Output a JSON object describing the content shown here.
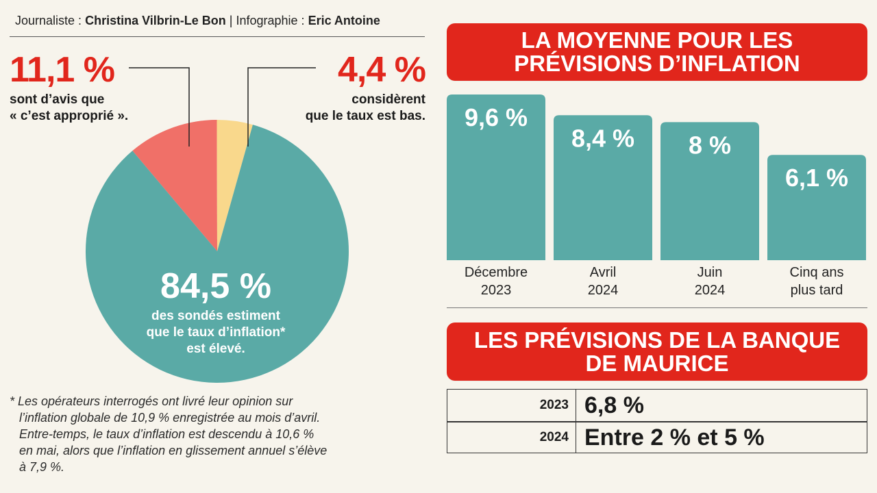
{
  "credits": {
    "journalist_label": "Journaliste :",
    "journalist_name": "Christina Vilbrin-Le Bon",
    "separator": "|",
    "infographic_label": "Infographie :",
    "infographic_name": "Eric Antoine"
  },
  "pie": {
    "approprie": {
      "value_label": "11,1 %",
      "line1": "sont d’avis que",
      "line2": "« c’est approprié »."
    },
    "bas": {
      "value_label": "4,4 %",
      "line1": "considèrent",
      "line2": "que le taux est bas."
    },
    "eleve": {
      "value_label": "84,5 %",
      "line1": "des sondés estiment",
      "line2": "que le taux d’inflation*",
      "line3": "est élevé."
    }
  },
  "footnote": [
    "* Les opérateurs interrogés ont livré leur opinion sur",
    "l’inflation globale de 10,9 % enregistrée au mois d’avril.",
    "Entre-temps, le taux d’inflation est descendu à 10,6 %",
    "en mai, alors que l’inflation en glissement annuel s’élève",
    "à 7,9 %."
  ],
  "banner_moyenne": {
    "line1": "LA MOYENNE POUR LES",
    "line2": "PRÉVISIONS D’INFLATION"
  },
  "bars": {
    "labels": [
      "9,6 %",
      "8,4 %",
      "8 %",
      "6,1 %"
    ],
    "categories": [
      {
        "line1": "Décembre",
        "line2": "2023"
      },
      {
        "line1": "Avril",
        "line2": "2024"
      },
      {
        "line1": "Juin",
        "line2": "2024"
      },
      {
        "line1": "Cinq ans",
        "line2": "plus tard"
      }
    ]
  },
  "banner_banque": {
    "line1": "LES PRÉVISIONS DE LA BANQUE",
    "line2": "DE MAURICE"
  },
  "forecast_table": {
    "rows": [
      {
        "year": "2023",
        "value": "6,8 %"
      },
      {
        "year": "2024",
        "value": "Entre 2 % et 5 %"
      }
    ]
  },
  "colors": {
    "red": "#e1261c",
    "teal": "#5aaaa6",
    "salmon": "#f07068",
    "yellow": "#f9d88c",
    "background": "#f7f4ec"
  },
  "chart_data": [
    {
      "type": "pie",
      "slices": [
        {
          "label": "élevé",
          "value": 84.5,
          "color": "#5aaaa6"
        },
        {
          "label": "approprié",
          "value": 11.1,
          "color": "#f07068"
        },
        {
          "label": "bas",
          "value": 4.4,
          "color": "#f9d88c"
        }
      ]
    },
    {
      "type": "bar",
      "categories": [
        "Décembre 2023",
        "Avril 2024",
        "Juin 2024",
        "Cinq ans plus tard"
      ],
      "values": [
        9.6,
        8.4,
        8.0,
        6.1
      ],
      "ylim": [
        0,
        9.6
      ],
      "grid": false
    }
  ]
}
